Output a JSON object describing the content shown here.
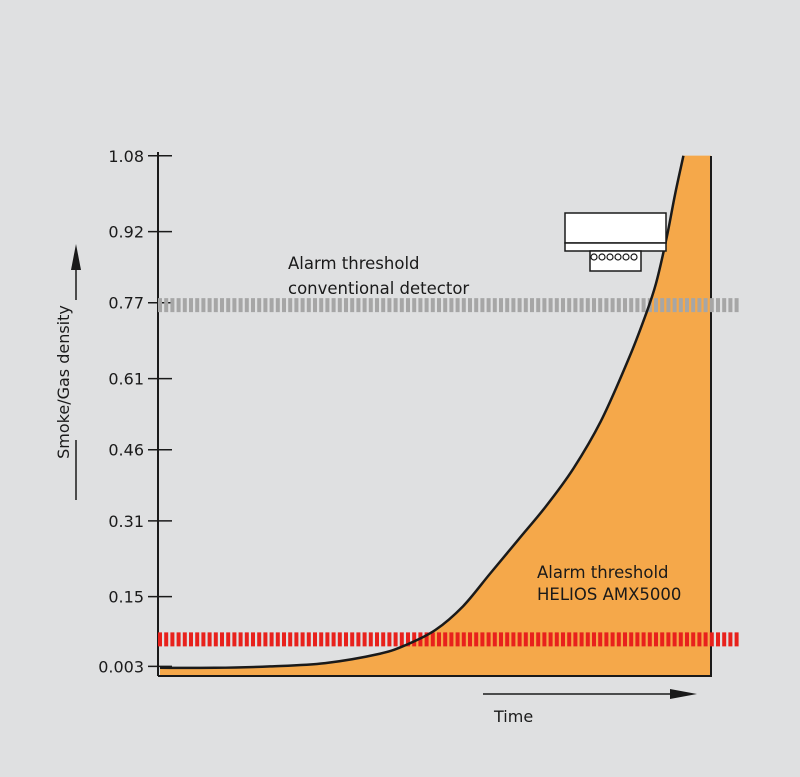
{
  "chart_data": {
    "type": "area",
    "title": "",
    "xlabel": "Time",
    "ylabel": "Smoke/Gas density",
    "y_ticks": [
      {
        "value": 1.08,
        "label": "1.08"
      },
      {
        "value": 0.92,
        "label": "0.92"
      },
      {
        "value": 0.77,
        "label": "0.77"
      },
      {
        "value": 0.61,
        "label": "0.61"
      },
      {
        "value": 0.46,
        "label": "0.46"
      },
      {
        "value": 0.31,
        "label": "0.31"
      },
      {
        "value": 0.15,
        "label": "0.15"
      },
      {
        "value": 0.003,
        "label": "0.003"
      }
    ],
    "ylim": [
      -0.06,
      1.08
    ],
    "xlim": [
      0,
      1
    ],
    "grid": false,
    "series": [
      {
        "x": [
          0,
          0.1,
          0.2,
          0.3,
          0.4,
          0.45,
          0.5,
          0.55,
          0.6,
          0.65,
          0.7,
          0.75,
          0.8,
          0.85,
          0.88,
          0.9,
          0.92,
          0.935,
          0.95
        ],
        "y": [
          0.0,
          0.0,
          0.003,
          0.01,
          0.03,
          0.05,
          0.08,
          0.13,
          0.2,
          0.27,
          0.34,
          0.42,
          0.52,
          0.65,
          0.74,
          0.81,
          0.91,
          1.0,
          1.08
        ]
      }
    ],
    "thresholds": [
      {
        "label_lines": [
          "Alarm threshold",
          "conventional detector"
        ],
        "value": 0.765,
        "color": "#a6a6a6"
      },
      {
        "label_lines": [
          "Alarm threshold",
          "HELIOS AMX5000"
        ],
        "value": 0.06,
        "color": "#e8211c"
      }
    ],
    "colors": {
      "fill": "#f5a84a",
      "curve": "#1a1a1a",
      "axis": "#1a1a1a"
    }
  }
}
